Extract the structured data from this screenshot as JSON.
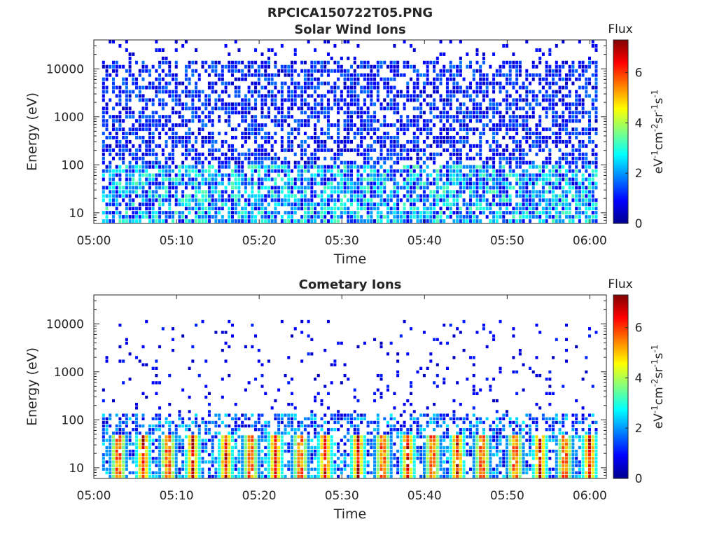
{
  "figure_title": "RPCICA150722T05.PNG",
  "chart_data": [
    {
      "type": "heatmap",
      "title": "Solar Wind Ions",
      "xlabel": "Time",
      "ylabel": "Energy (eV)",
      "xlim": [
        "05:00",
        "06:02"
      ],
      "ylim": [
        6,
        40000
      ],
      "yscale": "log",
      "x_ticks": [
        "05:00",
        "05:10",
        "05:20",
        "05:30",
        "05:40",
        "05:50",
        "06:00"
      ],
      "y_ticks": [
        10,
        100,
        1000,
        10000
      ],
      "y_tick_labels": [
        "10",
        "100",
        "1000",
        "10000"
      ],
      "colorbar": {
        "title": "Flux",
        "unit_label": "eV-1cm-2sr-1s-1",
        "range": [
          0,
          7.3
        ],
        "ticks": [
          0,
          2,
          4,
          6
        ],
        "colormap": "jet"
      },
      "data_start": "05:01",
      "data_end": "06:01",
      "max_energy_eV": 40000,
      "description_level": "dense low-flux (0.5-1.5) coverage from ~10 eV to ~15 keV; moderate (2-3.5) flux below ~100 eV"
    },
    {
      "type": "heatmap",
      "title": "Cometary Ions",
      "xlabel": "Time",
      "ylabel": "Energy (eV)",
      "xlim": [
        "05:00",
        "06:02"
      ],
      "ylim": [
        6,
        40000
      ],
      "yscale": "log",
      "x_ticks": [
        "05:00",
        "05:10",
        "05:20",
        "05:30",
        "05:40",
        "05:50",
        "06:00"
      ],
      "y_ticks": [
        10,
        100,
        1000,
        10000
      ],
      "y_tick_labels": [
        "10",
        "100",
        "1000",
        "10000"
      ],
      "colorbar": {
        "title": "Flux",
        "unit_label": "eV-1cm-2sr-1s-1",
        "range": [
          0,
          7.3
        ],
        "ticks": [
          0,
          2,
          4,
          6
        ],
        "colormap": "jet"
      },
      "data_start": "05:01",
      "data_end": "06:01",
      "max_energy_eV": 12000,
      "burst_times": [
        "05:03",
        "05:06",
        "05:09",
        "05:12",
        "05:16",
        "05:19",
        "05:22",
        "05:25",
        "05:28",
        "05:32",
        "05:35",
        "05:38",
        "05:41",
        "05:44",
        "05:47",
        "05:51",
        "05:54",
        "05:57",
        "06:00"
      ],
      "burst_peak_flux": 7,
      "burst_energy_range_eV": [
        10,
        40
      ]
    }
  ]
}
